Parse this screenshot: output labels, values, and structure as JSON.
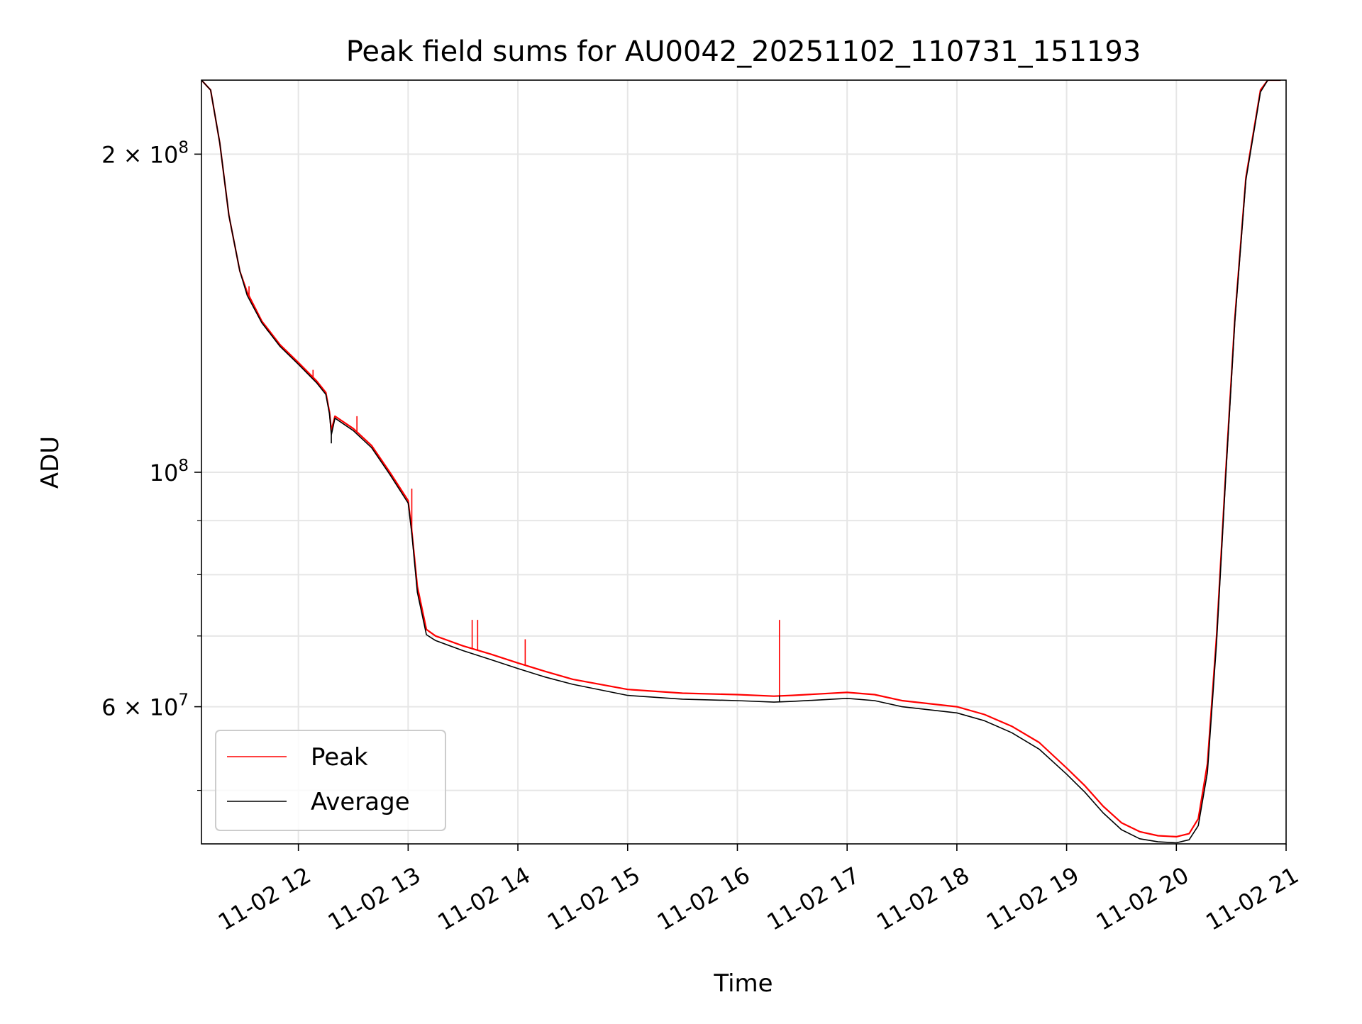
{
  "chart_data": {
    "type": "line",
    "title": "Peak field sums for AU0042_20251102_110731_151193",
    "xlabel": "Time",
    "ylabel": "ADU",
    "y_scale": "log",
    "ylim": [
      44500000,
      235000000
    ],
    "xlim": [
      "2025-11-02 11:07",
      "2025-11-02 21:00"
    ],
    "grid": true,
    "legend_position": "lower-left",
    "x_ticks": [
      {
        "x": "2025-11-02 12:00",
        "label": "11-02 12"
      },
      {
        "x": "2025-11-02 13:00",
        "label": "11-02 13"
      },
      {
        "x": "2025-11-02 14:00",
        "label": "11-02 14"
      },
      {
        "x": "2025-11-02 15:00",
        "label": "11-02 15"
      },
      {
        "x": "2025-11-02 16:00",
        "label": "11-02 16"
      },
      {
        "x": "2025-11-02 17:00",
        "label": "11-02 17"
      },
      {
        "x": "2025-11-02 18:00",
        "label": "11-02 18"
      },
      {
        "x": "2025-11-02 19:00",
        "label": "11-02 19"
      },
      {
        "x": "2025-11-02 20:00",
        "label": "11-02 20"
      },
      {
        "x": "2025-11-02 21:00",
        "label": "11-02 21"
      }
    ],
    "y_major_ticks": [
      {
        "y": 200000000,
        "mantissa": "2",
        "exponent": "8"
      },
      {
        "y": 100000000,
        "mantissa": "",
        "exponent": "8"
      },
      {
        "y": 60000000,
        "mantissa": "6",
        "exponent": "7"
      }
    ],
    "y_minor_ticks": [
      50000000,
      70000000,
      80000000,
      90000000
    ],
    "series": [
      {
        "name": "Peak",
        "color": "#ff0000",
        "points": [
          [
            "2025-11-02 11:07",
            235000000
          ],
          [
            "2025-11-02 11:12",
            230000000
          ],
          [
            "2025-11-02 11:17",
            205000000
          ],
          [
            "2025-11-02 11:22",
            175000000
          ],
          [
            "2025-11-02 11:28",
            155000000
          ],
          [
            "2025-11-02 11:32",
            148000000
          ],
          [
            "2025-11-02 11:40",
            139000000
          ],
          [
            "2025-11-02 11:50",
            132000000
          ],
          [
            "2025-11-02 12:00",
            127000000
          ],
          [
            "2025-11-02 12:10",
            122000000
          ],
          [
            "2025-11-02 12:15",
            119000000
          ],
          [
            "2025-11-02 12:17",
            114000000
          ],
          [
            "2025-11-02 12:18",
            109500000
          ],
          [
            "2025-11-02 12:20",
            113000000
          ],
          [
            "2025-11-02 12:30",
            110000000
          ],
          [
            "2025-11-02 12:40",
            106000000
          ],
          [
            "2025-11-02 12:50",
            100000000
          ],
          [
            "2025-11-02 13:00",
            94000000
          ],
          [
            "2025-11-02 13:02",
            88000000
          ],
          [
            "2025-11-02 13:05",
            78000000
          ],
          [
            "2025-11-02 13:10",
            71000000
          ],
          [
            "2025-11-02 13:15",
            70000000
          ],
          [
            "2025-11-02 13:30",
            68500000
          ],
          [
            "2025-11-02 13:45",
            67300000
          ],
          [
            "2025-11-02 14:00",
            66000000
          ],
          [
            "2025-11-02 14:15",
            64800000
          ],
          [
            "2025-11-02 14:30",
            63700000
          ],
          [
            "2025-11-02 15:00",
            62300000
          ],
          [
            "2025-11-02 15:30",
            61800000
          ],
          [
            "2025-11-02 16:00",
            61600000
          ],
          [
            "2025-11-02 16:20",
            61400000
          ],
          [
            "2025-11-02 16:30",
            61500000
          ],
          [
            "2025-11-02 17:00",
            61900000
          ],
          [
            "2025-11-02 17:15",
            61600000
          ],
          [
            "2025-11-02 17:30",
            60800000
          ],
          [
            "2025-11-02 18:00",
            60000000
          ],
          [
            "2025-11-02 18:15",
            59000000
          ],
          [
            "2025-11-02 18:30",
            57500000
          ],
          [
            "2025-11-02 18:45",
            55500000
          ],
          [
            "2025-11-02 19:00",
            52500000
          ],
          [
            "2025-11-02 19:10",
            50500000
          ],
          [
            "2025-11-02 19:20",
            48300000
          ],
          [
            "2025-11-02 19:30",
            46600000
          ],
          [
            "2025-11-02 19:40",
            45700000
          ],
          [
            "2025-11-02 19:50",
            45300000
          ],
          [
            "2025-11-02 20:00",
            45200000
          ],
          [
            "2025-11-02 20:07",
            45500000
          ],
          [
            "2025-11-02 20:12",
            47000000
          ],
          [
            "2025-11-02 20:17",
            53000000
          ],
          [
            "2025-11-02 20:22",
            70000000
          ],
          [
            "2025-11-02 20:27",
            100000000
          ],
          [
            "2025-11-02 20:32",
            140000000
          ],
          [
            "2025-11-02 20:38",
            190000000
          ],
          [
            "2025-11-02 20:46",
            230000000
          ],
          [
            "2025-11-02 20:50",
            235000000
          ],
          [
            "2025-11-02 20:57",
            235000000
          ]
        ],
        "spikes": [
          [
            "2025-11-02 11:33",
            150000000
          ],
          [
            "2025-11-02 11:43",
            136000000
          ],
          [
            "2025-11-02 12:08",
            125000000
          ],
          [
            "2025-11-02 12:32",
            113000000
          ],
          [
            "2025-11-02 13:02",
            96500000
          ],
          [
            "2025-11-02 13:35",
            72500000
          ],
          [
            "2025-11-02 13:38",
            72500000
          ],
          [
            "2025-11-02 14:04",
            69500000
          ],
          [
            "2025-11-02 16:23",
            72500000
          ]
        ]
      },
      {
        "name": "Average",
        "color": "#000000",
        "points": [
          [
            "2025-11-02 11:07",
            235000000
          ],
          [
            "2025-11-02 11:12",
            230000000
          ],
          [
            "2025-11-02 11:17",
            205000000
          ],
          [
            "2025-11-02 11:22",
            175000000
          ],
          [
            "2025-11-02 11:28",
            155000000
          ],
          [
            "2025-11-02 11:32",
            147000000
          ],
          [
            "2025-11-02 11:40",
            138500000
          ],
          [
            "2025-11-02 11:50",
            131500000
          ],
          [
            "2025-11-02 12:00",
            126500000
          ],
          [
            "2025-11-02 12:10",
            121500000
          ],
          [
            "2025-11-02 12:15",
            118500000
          ],
          [
            "2025-11-02 12:17",
            113500000
          ],
          [
            "2025-11-02 12:18",
            108500000
          ],
          [
            "2025-11-02 12:20",
            112500000
          ],
          [
            "2025-11-02 12:30",
            109500000
          ],
          [
            "2025-11-02 12:40",
            105500000
          ],
          [
            "2025-11-02 12:50",
            99500000
          ],
          [
            "2025-11-02 13:00",
            93500000
          ],
          [
            "2025-11-02 13:02",
            87500000
          ],
          [
            "2025-11-02 13:05",
            77000000
          ],
          [
            "2025-11-02 13:10",
            70200000
          ],
          [
            "2025-11-02 13:15",
            69300000
          ],
          [
            "2025-11-02 13:30",
            67800000
          ],
          [
            "2025-11-02 13:45",
            66500000
          ],
          [
            "2025-11-02 14:00",
            65200000
          ],
          [
            "2025-11-02 14:15",
            64000000
          ],
          [
            "2025-11-02 14:30",
            63000000
          ],
          [
            "2025-11-02 15:00",
            61500000
          ],
          [
            "2025-11-02 15:30",
            61000000
          ],
          [
            "2025-11-02 16:00",
            60800000
          ],
          [
            "2025-11-02 16:20",
            60600000
          ],
          [
            "2025-11-02 16:30",
            60700000
          ],
          [
            "2025-11-02 17:00",
            61100000
          ],
          [
            "2025-11-02 17:15",
            60800000
          ],
          [
            "2025-11-02 17:30",
            60000000
          ],
          [
            "2025-11-02 18:00",
            59200000
          ],
          [
            "2025-11-02 18:15",
            58200000
          ],
          [
            "2025-11-02 18:30",
            56700000
          ],
          [
            "2025-11-02 18:45",
            54700000
          ],
          [
            "2025-11-02 19:00",
            51800000
          ],
          [
            "2025-11-02 19:10",
            49800000
          ],
          [
            "2025-11-02 19:20",
            47600000
          ],
          [
            "2025-11-02 19:30",
            45900000
          ],
          [
            "2025-11-02 19:40",
            45000000
          ],
          [
            "2025-11-02 19:50",
            44700000
          ],
          [
            "2025-11-02 20:00",
            44600000
          ],
          [
            "2025-11-02 20:07",
            44900000
          ],
          [
            "2025-11-02 20:12",
            46300000
          ],
          [
            "2025-11-02 20:17",
            52000000
          ],
          [
            "2025-11-02 20:22",
            69000000
          ],
          [
            "2025-11-02 20:27",
            99000000
          ],
          [
            "2025-11-02 20:32",
            139000000
          ],
          [
            "2025-11-02 20:38",
            189000000
          ],
          [
            "2025-11-02 20:46",
            229000000
          ],
          [
            "2025-11-02 20:50",
            235000000
          ],
          [
            "2025-11-02 20:57",
            235000000
          ]
        ],
        "spikes": [
          [
            "2025-11-02 12:18",
            106500000
          ],
          [
            "2025-11-02 16:23",
            61500000
          ]
        ]
      }
    ]
  }
}
